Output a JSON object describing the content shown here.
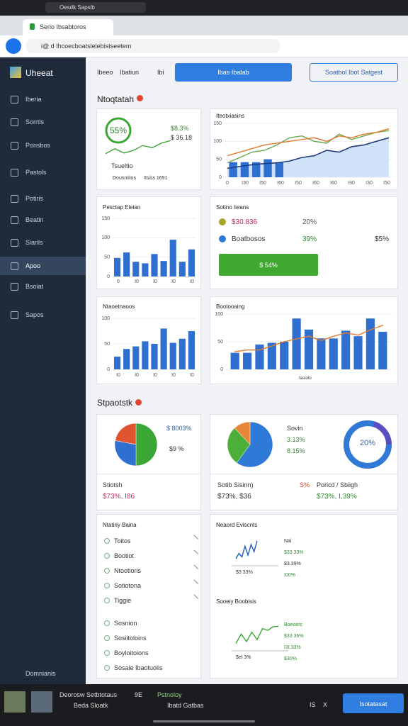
{
  "os_bar": {
    "title": "Oesdk Sapsib"
  },
  "browser": {
    "tab_title": "Serio Ibsabtoros",
    "url": "i@ d Ihcoecboatslelebistseetem"
  },
  "sidebar": {
    "brand": "Uheeat",
    "items": [
      "Iberia",
      "Sorrtls",
      "Ponsbos",
      "Pastols",
      "Potiris",
      "Beatin",
      "Siarils",
      "Apoo",
      "Bsoiat",
      "Sapos"
    ],
    "active": 7,
    "footer": "Domnianis"
  },
  "header": {
    "links": [
      "Ibeeo",
      "Ibatiun",
      "Ibi"
    ],
    "primary_button": "Ibas Ibatab",
    "secondary_button": "Soatbol Ibot Satgest"
  },
  "section_1": {
    "title": "Ntoqtatah"
  },
  "gauge_card": {
    "value": "55%",
    "stat_1": "$8.3%",
    "stat_2": "$ 36.18",
    "caption": "Tsueltio",
    "footer_1": "Dousmitos",
    "footer_2": "Itsiss 1691",
    "trend": [
      20,
      35,
      22,
      30,
      45,
      38,
      52,
      60
    ]
  },
  "combo_card": {
    "title": "Iteotxiasins",
    "ylim": [
      0,
      150
    ],
    "yticks": [
      0,
      50,
      100,
      150
    ],
    "x_labels": [
      "0",
      "I30",
      "I50",
      "I60",
      "I50",
      "I60",
      "I60",
      "I30",
      "I30",
      "I50"
    ],
    "bars": [
      42,
      42,
      42,
      50,
      42
    ],
    "series": [
      {
        "color": "#6aa84f",
        "values": [
          40,
          55,
          70,
          75,
          90,
          110,
          115,
          100,
          95,
          120,
          105,
          115,
          125,
          130
        ]
      },
      {
        "color": "#1f3a7a",
        "values": [
          25,
          30,
          35,
          38,
          40,
          45,
          55,
          60,
          75,
          70,
          85,
          90,
          100,
          110
        ]
      },
      {
        "color": "#e07a2f",
        "values": [
          60,
          70,
          80,
          90,
          95,
          100,
          105,
          110,
          100,
          115,
          110,
          120,
          125,
          135
        ]
      }
    ]
  },
  "bar_card": {
    "title": "Pesctap Eieian",
    "ylim": [
      0,
      150
    ],
    "yticks": [
      0,
      50,
      100,
      150
    ],
    "values": [
      48,
      62,
      38,
      34,
      58,
      40,
      95,
      38,
      70
    ],
    "x_labels": [
      "0",
      "I0",
      "I0",
      "I0",
      "I0"
    ]
  },
  "legend_card": {
    "title": "Sotino Iieans",
    "rows": [
      {
        "label": "$30.836",
        "pct": "20%",
        "color": "#a5a52a"
      },
      {
        "label": "Boatbosos",
        "pct": "39%",
        "value": "$5%",
        "color": "#2f7ad6"
      }
    ],
    "button": "$ 54%"
  },
  "bar_card_2": {
    "title": "Ntaoetnaoos",
    "ylim": [
      0,
      100
    ],
    "yticks": [
      0,
      50,
      100
    ],
    "values": [
      25,
      40,
      45,
      55,
      50,
      80,
      52,
      60,
      75
    ],
    "x_labels": [
      "I0",
      "I0",
      "I0",
      "I0",
      "I0"
    ]
  },
  "combo_card_2": {
    "title": "Bootooaing",
    "ylim": [
      0,
      100
    ],
    "yticks": [
      0,
      50,
      100
    ],
    "bars": [
      30,
      30,
      45,
      48,
      50,
      92,
      72,
      56,
      56,
      70,
      60,
      92,
      68
    ],
    "line": [
      32,
      35,
      35,
      42,
      50,
      55,
      60,
      52,
      60,
      66,
      62,
      72,
      80
    ],
    "x_caption": "Iasioto"
  },
  "section_2": {
    "title": "Stpaotstk"
  },
  "pie_card": {
    "values": [
      50,
      28,
      22
    ],
    "colors": [
      "#3aa635",
      "#2f6fd0",
      "#e0552f"
    ],
    "label_1": "$ 8003%",
    "label_2": "$9 %",
    "sub_title": "Stiotsh",
    "sub_value": "$73%, I86"
  },
  "pie_card_2": {
    "values": [
      60,
      28,
      12
    ],
    "colors": [
      "#2f7ad6",
      "#4caf3a",
      "#e8863a"
    ],
    "legend": [
      "Sovin",
      "3.13%",
      "8.15%"
    ],
    "donut_label": "20%",
    "sub_title_1": "Sotib Sisinn)",
    "sub_value_1": "$73%, $36",
    "sub_badge": "S%",
    "sub_title_2": "Poricd / Sbiigh",
    "sub_value_2": "$73%, I,39%"
  },
  "list_card": {
    "title": "Ntatiriy Baina",
    "items": [
      "Toitos",
      "Bootiot",
      "Ntootioris",
      "Sotiotona",
      "Tiggie",
      "Sosnion",
      "Sosiitoloins",
      "Boyloitoions",
      "Sosaie Ibaotuolis"
    ]
  },
  "events_card": {
    "title": "Neaord Eviscnts",
    "spark_1": [
      20,
      35,
      25,
      55,
      30,
      60,
      40,
      70
    ],
    "spark_1_label": "$3 33%",
    "labels_1": [
      "Nai",
      "$33.33%",
      "$3.39%",
      "I00%"
    ],
    "sub_title": "Sooeiy Boobisis",
    "spark_2": [
      20,
      45,
      25,
      50,
      30,
      60,
      55,
      65,
      66
    ],
    "spark_2_label": "$el 3%",
    "labels_2": [
      "Boeoorc",
      "$33 36%",
      "I3I.33%",
      "$30%"
    ]
  },
  "taskbar": {
    "app_1": "Deorosw Setbtotaus",
    "app_1_badge": "9E",
    "app_2": "Beda Sloatk",
    "app_3": "Pstnoloy",
    "app_4": "Ibatd Gatbas",
    "tray_1": "IS",
    "tray_2": "X",
    "button": "Isotatasat"
  }
}
